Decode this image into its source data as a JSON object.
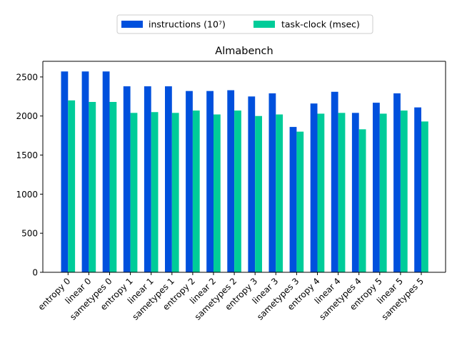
{
  "chart_data": {
    "type": "bar",
    "title": "Almabench",
    "xlabel": "",
    "ylabel": "",
    "ylim": [
      0,
      2700
    ],
    "yticks": [
      0,
      500,
      1000,
      1500,
      2000,
      2500
    ],
    "grid": false,
    "legend_position": "top-center",
    "categories": [
      "entropy 0",
      "linear 0",
      "sametypes 0",
      "entropy 1",
      "linear 1",
      "sametypes 1",
      "entropy 2",
      "linear 2",
      "sametypes 2",
      "entropy 3",
      "linear 3",
      "sametypes 3",
      "entropy 4",
      "linear 4",
      "sametypes 4",
      "entropy 5",
      "linear 5",
      "sametypes 5"
    ],
    "series": [
      {
        "name": "instructions (10⁷)",
        "color": "#0050dd",
        "values": [
          2570,
          2570,
          2570,
          2380,
          2380,
          2380,
          2320,
          2320,
          2330,
          2250,
          2290,
          1860,
          2160,
          2310,
          2040,
          2170,
          2290,
          2110
        ]
      },
      {
        "name": "task-clock (msec)",
        "color": "#00cc99",
        "values": [
          2200,
          2180,
          2180,
          2040,
          2050,
          2040,
          2070,
          2020,
          2070,
          2000,
          2020,
          1800,
          2030,
          2040,
          1830,
          2030,
          2070,
          1930
        ]
      }
    ]
  }
}
